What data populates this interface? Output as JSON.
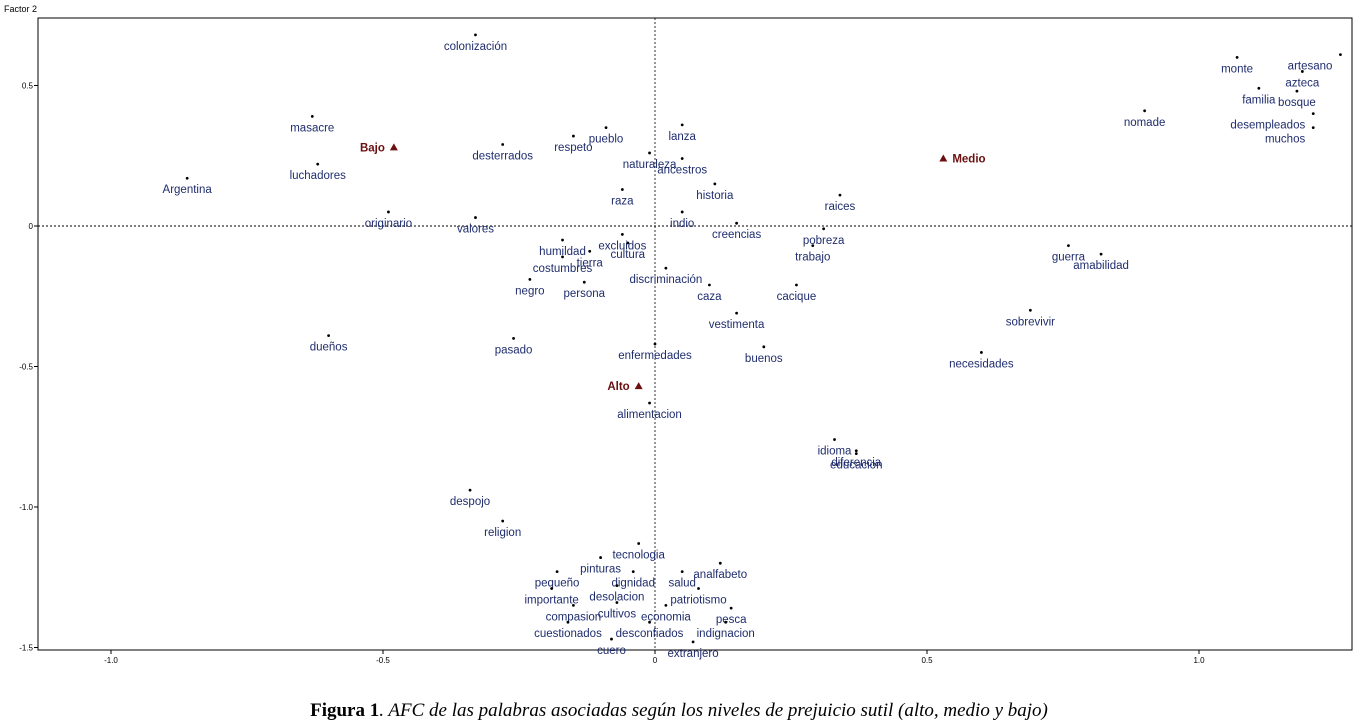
{
  "chart_data": {
    "type": "scatter",
    "ylabel": "Factor 2",
    "xlim": [
      -1.0,
      1.25
    ],
    "ylim": [
      -1.5,
      0.7
    ],
    "xticks": [
      "-1.0",
      "-0.5",
      "0",
      "0.5",
      "1.0"
    ],
    "yticks": [
      "0.5",
      "0",
      "-0.5",
      "-1.0",
      "-1.5"
    ],
    "groups": [
      {
        "label": "Bajo",
        "x": -0.48,
        "y": 0.28
      },
      {
        "label": "Medio",
        "x": 0.53,
        "y": 0.24
      },
      {
        "label": "Alto",
        "x": -0.03,
        "y": -0.57
      }
    ],
    "words": [
      {
        "label": "colonización",
        "x": -0.33,
        "y": 0.68
      },
      {
        "label": "masacre",
        "x": -0.63,
        "y": 0.39
      },
      {
        "label": "luchadores",
        "x": -0.62,
        "y": 0.22
      },
      {
        "label": "Argentina",
        "x": -0.86,
        "y": 0.17
      },
      {
        "label": "desterrados",
        "x": -0.28,
        "y": 0.29
      },
      {
        "label": "respeto",
        "x": -0.15,
        "y": 0.32
      },
      {
        "label": "pueblo",
        "x": -0.09,
        "y": 0.35
      },
      {
        "label": "lanza",
        "x": 0.05,
        "y": 0.36
      },
      {
        "label": "naturaleza",
        "x": -0.01,
        "y": 0.26
      },
      {
        "label": "ancestros",
        "x": 0.05,
        "y": 0.24
      },
      {
        "label": "historia",
        "x": 0.11,
        "y": 0.15
      },
      {
        "label": "raza",
        "x": -0.06,
        "y": 0.13
      },
      {
        "label": "raices",
        "x": 0.34,
        "y": 0.11
      },
      {
        "label": "originario",
        "x": -0.49,
        "y": 0.05
      },
      {
        "label": "valores",
        "x": -0.33,
        "y": 0.03
      },
      {
        "label": "indio",
        "x": 0.05,
        "y": 0.05
      },
      {
        "label": "creencias",
        "x": 0.15,
        "y": 0.01
      },
      {
        "label": "excluidos",
        "x": -0.06,
        "y": -0.03
      },
      {
        "label": "humildad",
        "x": -0.17,
        "y": -0.05
      },
      {
        "label": "cultura",
        "x": -0.05,
        "y": -0.06
      },
      {
        "label": "tierra",
        "x": -0.12,
        "y": -0.09
      },
      {
        "label": "costumbres",
        "x": -0.17,
        "y": -0.11
      },
      {
        "label": "pobreza",
        "x": 0.31,
        "y": -0.01
      },
      {
        "label": "trabajo",
        "x": 0.29,
        "y": -0.07
      },
      {
        "label": "guerra",
        "x": 0.76,
        "y": -0.07
      },
      {
        "label": "amabilidad",
        "x": 0.82,
        "y": -0.1
      },
      {
        "label": "discriminación",
        "x": 0.02,
        "y": -0.15
      },
      {
        "label": "negro",
        "x": -0.23,
        "y": -0.19
      },
      {
        "label": "persona",
        "x": -0.13,
        "y": -0.2
      },
      {
        "label": "caza",
        "x": 0.1,
        "y": -0.21
      },
      {
        "label": "cacique",
        "x": 0.26,
        "y": -0.21
      },
      {
        "label": "vestimenta",
        "x": 0.15,
        "y": -0.31
      },
      {
        "label": "sobrevivir",
        "x": 0.69,
        "y": -0.3
      },
      {
        "label": "dueños",
        "x": -0.6,
        "y": -0.39
      },
      {
        "label": "pasado",
        "x": -0.26,
        "y": -0.4
      },
      {
        "label": "enfermedades",
        "x": 0.0,
        "y": -0.42
      },
      {
        "label": "buenos",
        "x": 0.2,
        "y": -0.43
      },
      {
        "label": "necesidades",
        "x": 0.6,
        "y": -0.45
      },
      {
        "label": "alimentacion",
        "x": -0.01,
        "y": -0.63
      },
      {
        "label": "idioma",
        "x": 0.33,
        "y": -0.76
      },
      {
        "label": "diferencia",
        "x": 0.37,
        "y": -0.8
      },
      {
        "label": "educacion",
        "x": 0.37,
        "y": -0.81
      },
      {
        "label": "despojo",
        "x": -0.34,
        "y": -0.94
      },
      {
        "label": "religion",
        "x": -0.28,
        "y": -1.05
      },
      {
        "label": "tecnologia",
        "x": -0.03,
        "y": -1.13
      },
      {
        "label": "analfabeto",
        "x": 0.12,
        "y": -1.2
      },
      {
        "label": "pinturas",
        "x": -0.1,
        "y": -1.18
      },
      {
        "label": "pequeño",
        "x": -0.18,
        "y": -1.23
      },
      {
        "label": "dignidad",
        "x": -0.04,
        "y": -1.23
      },
      {
        "label": "salud",
        "x": 0.05,
        "y": -1.23
      },
      {
        "label": "desolacion",
        "x": -0.07,
        "y": -1.28
      },
      {
        "label": "patriotismo",
        "x": 0.08,
        "y": -1.29
      },
      {
        "label": "importante",
        "x": -0.19,
        "y": -1.29
      },
      {
        "label": "cultivos",
        "x": -0.07,
        "y": -1.34
      },
      {
        "label": "economia",
        "x": 0.02,
        "y": -1.35
      },
      {
        "label": "compasion",
        "x": -0.15,
        "y": -1.35
      },
      {
        "label": "pesca",
        "x": 0.14,
        "y": -1.36
      },
      {
        "label": "cuestionados",
        "x": -0.16,
        "y": -1.41
      },
      {
        "label": "desconfiados",
        "x": -0.01,
        "y": -1.41
      },
      {
        "label": "indignacion",
        "x": 0.13,
        "y": -1.41
      },
      {
        "label": "cuero",
        "x": -0.08,
        "y": -1.47
      },
      {
        "label": "extranjero",
        "x": 0.07,
        "y": -1.48
      },
      {
        "label": "artesano",
        "x": 1.26,
        "y": 0.61
      },
      {
        "label": "monte",
        "x": 1.07,
        "y": 0.6
      },
      {
        "label": "azteca",
        "x": 1.19,
        "y": 0.55
      },
      {
        "label": "familia",
        "x": 1.11,
        "y": 0.49
      },
      {
        "label": "bosque",
        "x": 1.18,
        "y": 0.48
      },
      {
        "label": "nomade",
        "x": 0.9,
        "y": 0.41
      },
      {
        "label": "desempleados",
        "x": 1.21,
        "y": 0.4
      },
      {
        "label": "muchos",
        "x": 1.21,
        "y": 0.35
      }
    ]
  },
  "caption": {
    "label": "Figura 1",
    "text": ". AFC de las palabras asociadas según los niveles de prejuicio sutil (alto, medio y bajo)"
  }
}
